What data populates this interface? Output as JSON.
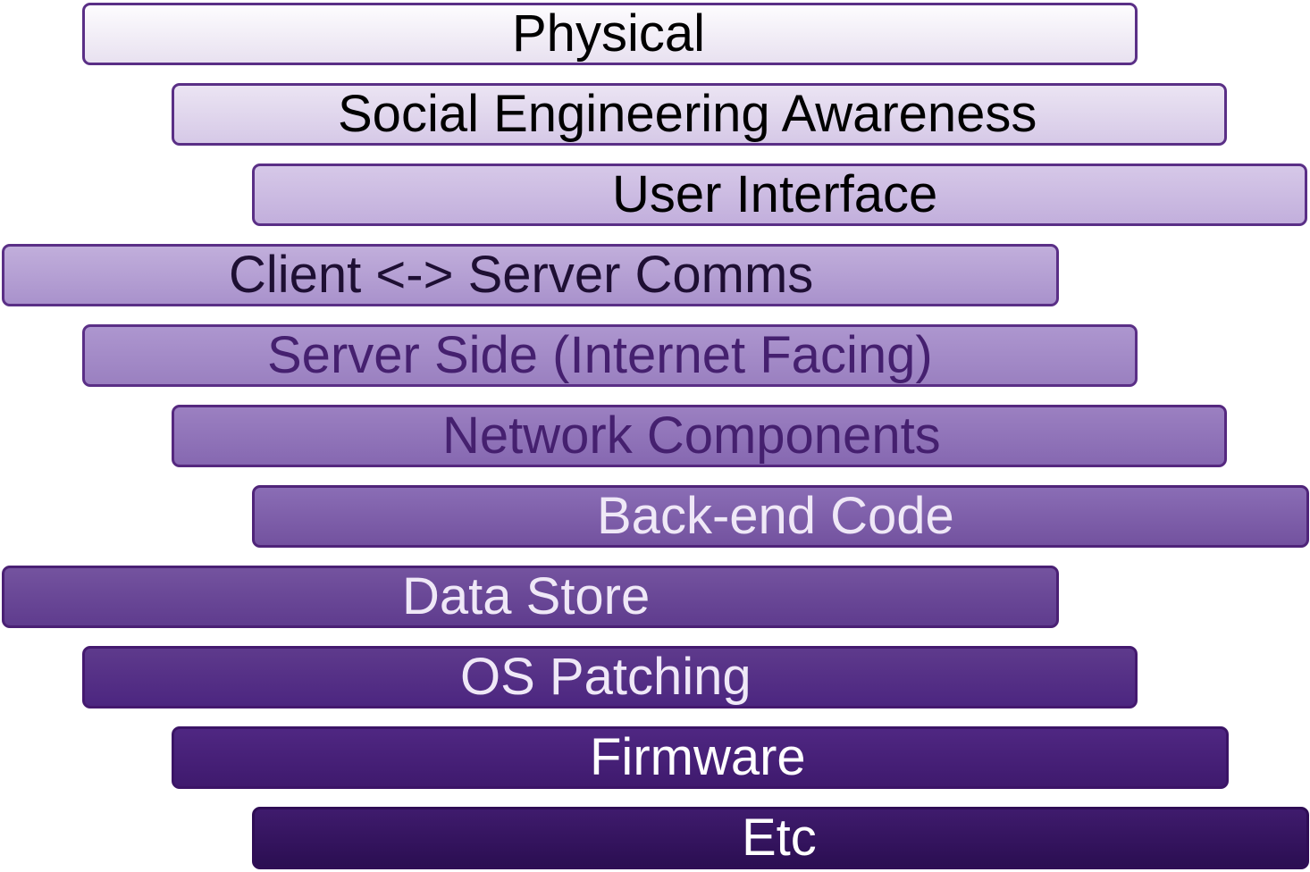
{
  "diagram": {
    "layers": [
      {
        "label": "Physical"
      },
      {
        "label": "Social Engineering Awareness"
      },
      {
        "label": "User Interface"
      },
      {
        "label": "Client <-> Server Comms"
      },
      {
        "label": "Server Side (Internet Facing)"
      },
      {
        "label": "Network Components"
      },
      {
        "label": "Back-end Code"
      },
      {
        "label": "Data Store"
      },
      {
        "label": "OS Patching"
      },
      {
        "label": "Firmware"
      },
      {
        "label": "Etc"
      }
    ],
    "colors": {
      "border": "#4a2475",
      "top_fill": "#fdfcfe",
      "bottom_fill": "#2b0e52"
    }
  }
}
